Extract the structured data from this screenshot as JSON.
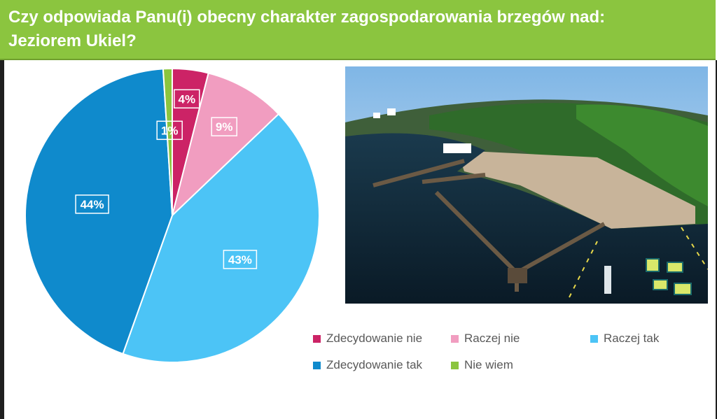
{
  "header": {
    "title_line1": "Czy odpowiada Panu(i) obecny charakter zagospodarowania brzegów nad:",
    "title_line2": "Jeziorem Ukiel?"
  },
  "chart_data": {
    "type": "pie",
    "title": "",
    "categories": [
      "Zdecydowanie nie",
      "Raczej nie",
      "Raczej tak",
      "Zdecydowanie tak",
      "Nie wiem"
    ],
    "values": [
      4,
      9,
      43,
      44,
      1
    ],
    "labels": [
      "4%",
      "9%",
      "43%",
      "44%",
      "1%"
    ],
    "colors": [
      "#cc2366",
      "#f19dc0",
      "#4cc4f6",
      "#0f8acc",
      "#8bc53f"
    ],
    "legend_placement": "bottom-right"
  },
  "photo": {
    "semantic": "aerial-photo-lake-beach-pier"
  }
}
